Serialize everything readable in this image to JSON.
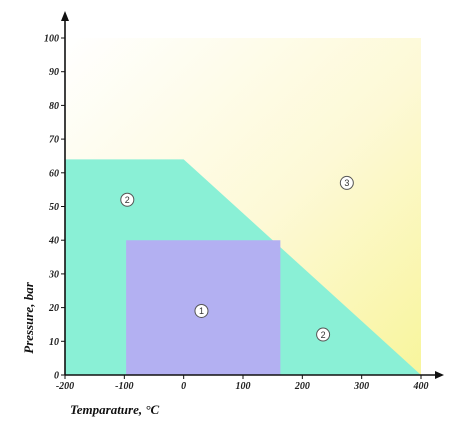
{
  "chart_data": {
    "type": "area",
    "title": "",
    "xlabel": "Temparature, °C",
    "ylabel": "Pressure, bar",
    "xlim": [
      -200,
      400
    ],
    "ylim": [
      0,
      100
    ],
    "x_ticks": [
      -200,
      -100,
      0,
      100,
      200,
      300,
      400
    ],
    "y_ticks": [
      0,
      10,
      20,
      30,
      40,
      50,
      60,
      70,
      80,
      90,
      100
    ],
    "grid": false,
    "zones": [
      {
        "label": "3",
        "color": "#fdfbc8",
        "polygon": [
          [
            -200,
            100
          ],
          [
            400,
            100
          ],
          [
            400,
            0
          ],
          [
            -200,
            0
          ]
        ],
        "label_pos": [
          275,
          57
        ]
      },
      {
        "label": "2",
        "color": "#8af0d6",
        "polygon": [
          [
            -200,
            64
          ],
          [
            0,
            64
          ],
          [
            400,
            0
          ],
          [
            -200,
            0
          ]
        ],
        "label_pos": [
          -95,
          52
        ],
        "label_pos_2": [
          235,
          12
        ]
      },
      {
        "label": "1",
        "color": "#b3b0f2",
        "polygon": [
          [
            -97,
            40
          ],
          [
            163,
            40
          ],
          [
            163,
            0
          ],
          [
            -97,
            0
          ]
        ],
        "label_pos": [
          30,
          19
        ]
      }
    ]
  }
}
